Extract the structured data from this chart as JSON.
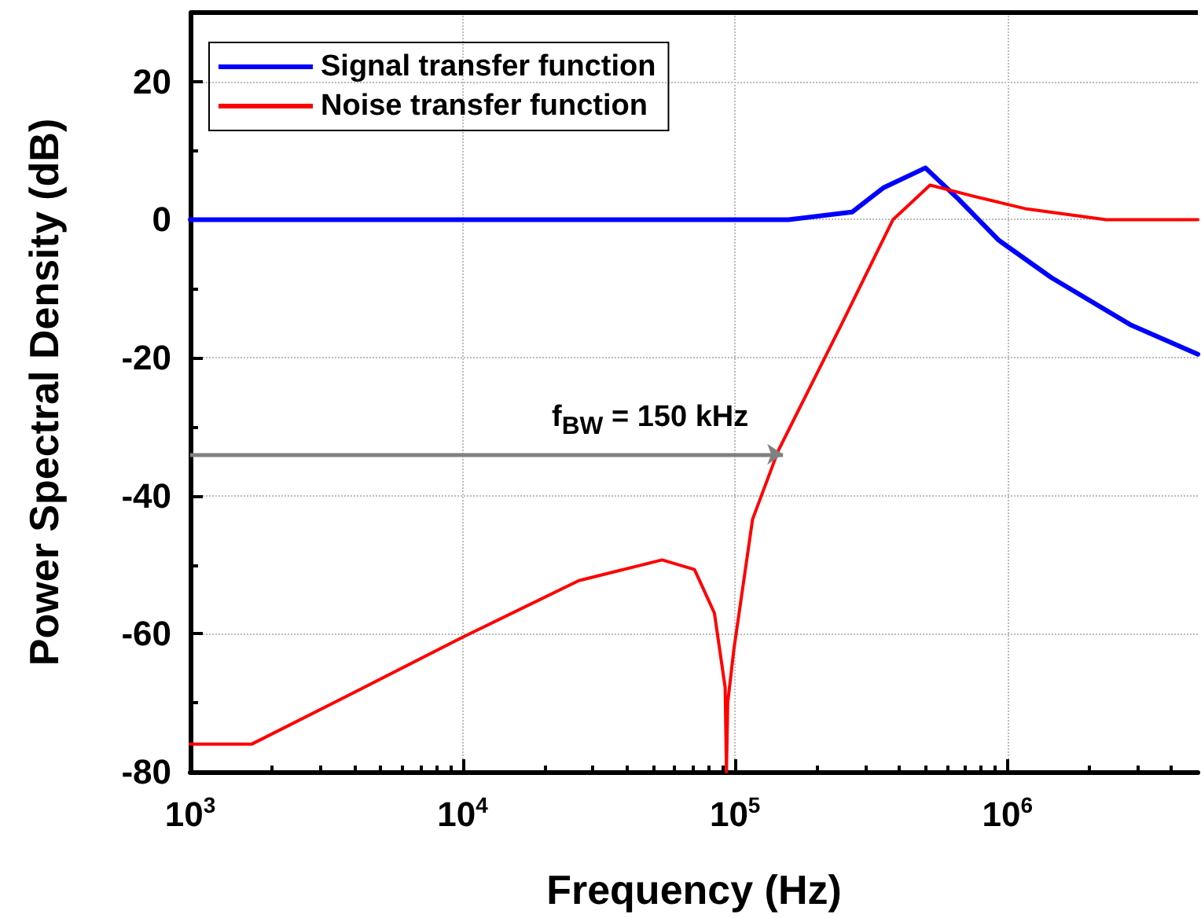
{
  "chart_data": {
    "type": "line",
    "xlabel": "Frequency (Hz)",
    "ylabel": "Power Spectral Density (dB)",
    "log": "x",
    "xlim": [
      1000,
      5000000
    ],
    "ylim": [
      -80,
      30
    ],
    "xticks": [
      {
        "value": 1000,
        "label": "10$^{3}$"
      },
      {
        "value": 10000,
        "label": "10$^{4}$"
      },
      {
        "value": 100000,
        "label": "10$^{5}$"
      },
      {
        "value": 1000000,
        "label": "10$^{6}$"
      }
    ],
    "yticks": [
      -80,
      -60,
      -40,
      -20,
      0,
      20
    ],
    "grid": true,
    "legend": "top left",
    "line_style": "solid",
    "marker": "none",
    "annotations": [
      {
        "text": "f$_{BW}$ = 150 kHz",
        "x": 150000,
        "y": -34
      }
    ],
    "series": [
      {
        "name": "Signal transfer function",
        "color": "#0000ff",
        "x": [
          1000,
          10000,
          100000,
          157000,
          269000,
          350000,
          500000,
          660000,
          930000,
          1450000,
          2850000,
          5000000
        ],
        "values": [
          0,
          0,
          0,
          0,
          1.1,
          4.6,
          7.5,
          3,
          -3,
          -8.4,
          -15.3,
          -19.5
        ]
      },
      {
        "name": "Noise transfer function",
        "color": "#ff0000",
        "x": [
          1000,
          1680,
          3600,
          10000,
          26700,
          54000,
          71000,
          84000,
          92000,
          93000,
          94000,
          99000,
          116000,
          144000,
          245000,
          380000,
          520000,
          750000,
          1160000,
          2300000,
          5000000
        ],
        "values": [
          -76,
          -76,
          -69.4,
          -60.5,
          -52.3,
          -49.3,
          -50.7,
          -57,
          -67.8,
          -80,
          -70,
          -62.3,
          -43.4,
          -33.5,
          -15.3,
          0,
          5,
          3.4,
          1.6,
          0,
          0
        ]
      }
    ]
  }
}
